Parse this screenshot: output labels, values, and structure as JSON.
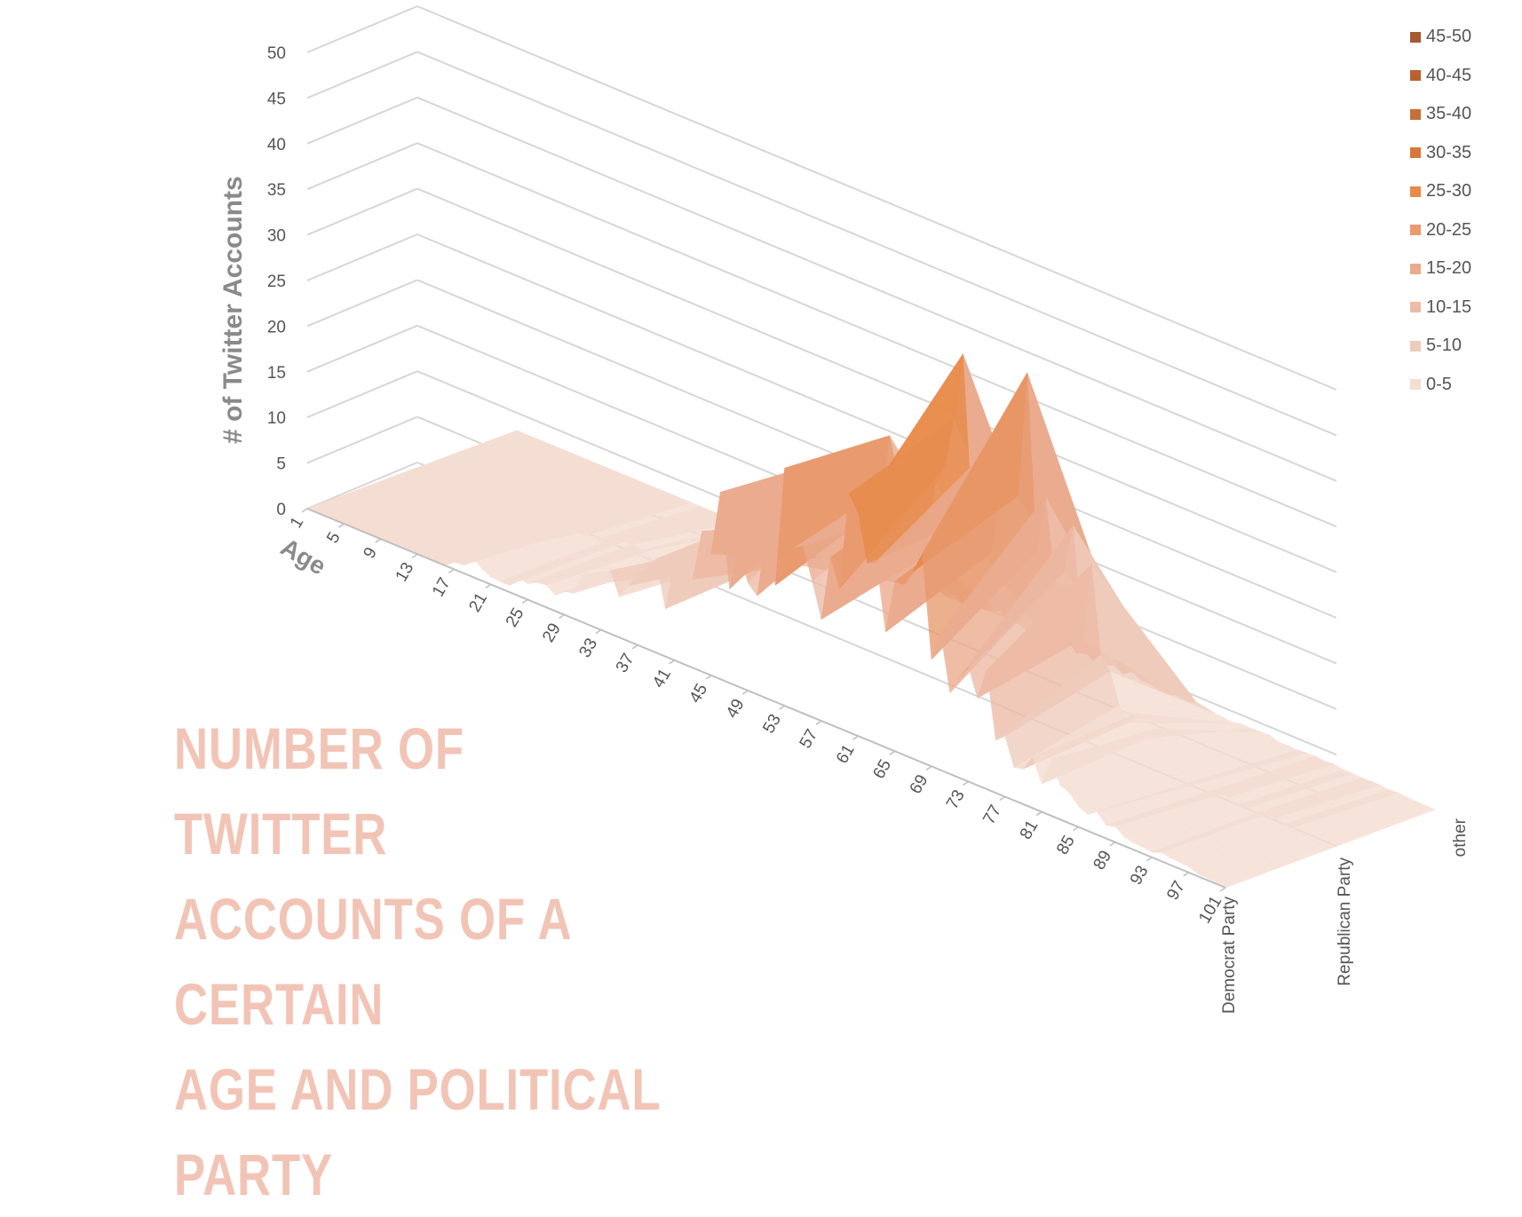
{
  "chart_data": {
    "type": "surface",
    "title": "NUMBER OF TWITTER ACCOUNTS OF A CERTAIN AGE AND POLITICAL PARTY",
    "title_lines": [
      "NUMBER OF TWITTER",
      "ACCOUNTS OF A CERTAIN",
      "AGE AND POLITICAL PARTY"
    ],
    "zlabel": "# of Twitter Accounts",
    "xlabel": "Age",
    "zlim": [
      0,
      50
    ],
    "z_ticks": [
      "0",
      "5",
      "10",
      "15",
      "20",
      "25",
      "30",
      "35",
      "40",
      "45",
      "50"
    ],
    "age_ticks": [
      "1",
      "5",
      "9",
      "13",
      "17",
      "21",
      "25",
      "29",
      "33",
      "37",
      "41",
      "45",
      "49",
      "53",
      "57",
      "61",
      "65",
      "69",
      "73",
      "77",
      "81",
      "85",
      "89",
      "93",
      "97",
      "101"
    ],
    "series": [
      {
        "name": "Democrat Party",
        "peaks": [
          [
            1,
            0
          ],
          [
            16,
            0
          ],
          [
            19,
            2
          ],
          [
            22,
            1
          ],
          [
            28,
            3
          ],
          [
            33,
            6
          ],
          [
            37,
            10
          ],
          [
            40,
            8
          ],
          [
            44,
            18
          ],
          [
            48,
            15
          ],
          [
            52,
            22
          ],
          [
            56,
            19
          ],
          [
            60,
            23
          ],
          [
            62,
            24
          ],
          [
            66,
            22
          ],
          [
            70,
            17
          ],
          [
            74,
            12
          ],
          [
            78,
            6
          ],
          [
            82,
            5
          ],
          [
            86,
            3
          ],
          [
            90,
            1
          ],
          [
            94,
            1
          ],
          [
            101,
            0
          ]
        ]
      },
      {
        "name": "Republican Party",
        "peaks": [
          [
            1,
            0
          ],
          [
            17,
            0
          ],
          [
            21,
            1
          ],
          [
            27,
            2
          ],
          [
            32,
            3
          ],
          [
            36,
            7
          ],
          [
            40,
            9
          ],
          [
            43,
            12
          ],
          [
            46,
            16
          ],
          [
            50,
            29
          ],
          [
            54,
            20
          ],
          [
            58,
            27
          ],
          [
            61,
            32
          ],
          [
            64,
            30
          ],
          [
            68,
            31
          ],
          [
            72,
            27
          ],
          [
            76,
            13
          ],
          [
            80,
            6
          ],
          [
            84,
            3
          ],
          [
            88,
            1
          ],
          [
            94,
            1
          ],
          [
            101,
            0
          ]
        ]
      },
      {
        "name": "other",
        "peaks": [
          [
            1,
            0
          ],
          [
            30,
            0
          ],
          [
            40,
            1
          ],
          [
            55,
            2
          ],
          [
            70,
            1
          ],
          [
            101,
            0
          ]
        ]
      }
    ],
    "legend": [
      {
        "label": "45-50",
        "color": "#a65a32"
      },
      {
        "label": "40-45",
        "color": "#b8622f"
      },
      {
        "label": "35-40",
        "color": "#c76f36"
      },
      {
        "label": "30-35",
        "color": "#d8773a"
      },
      {
        "label": "25-30",
        "color": "#e88a48"
      },
      {
        "label": "20-25",
        "color": "#e99a6e"
      },
      {
        "label": "15-20",
        "color": "#ebab8e"
      },
      {
        "label": "10-15",
        "color": "#edbba6"
      },
      {
        "label": "5-10",
        "color": "#efcbbb"
      },
      {
        "label": "0-5",
        "color": "#f4ddd2"
      }
    ],
    "grid": true,
    "legend_position": "right"
  }
}
